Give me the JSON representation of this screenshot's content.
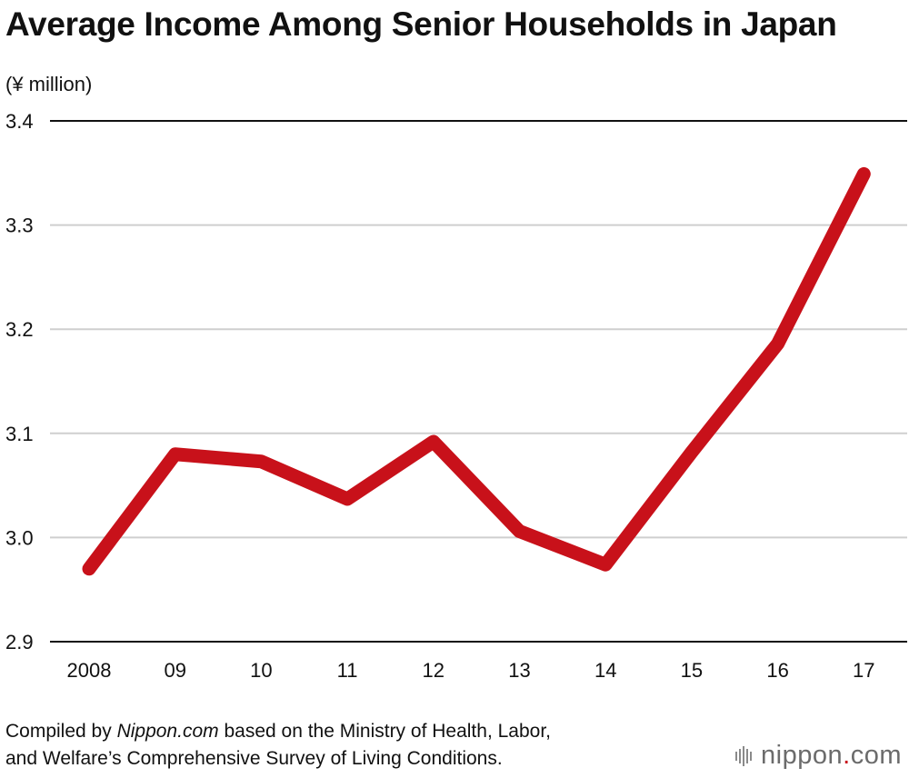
{
  "chart_data": {
    "type": "line",
    "title": "Average Income Among Senior Households in Japan",
    "ylabel": "(¥ million)",
    "xlabel": "",
    "categories": [
      "2008",
      "09",
      "10",
      "11",
      "12",
      "13",
      "14",
      "15",
      "16",
      "17"
    ],
    "series": [
      {
        "values": [
          2.97,
          3.08,
          3.073,
          3.037,
          3.092,
          3.006,
          2.974,
          3.082,
          3.186,
          3.349
        ]
      }
    ],
    "ylim": [
      2.9,
      3.4
    ],
    "yticks": [
      "2.9",
      "3.0",
      "3.1",
      "3.2",
      "3.3",
      "3.4"
    ],
    "grid": true,
    "line_color": "#c8111a"
  },
  "source": {
    "prefix": "Compiled by ",
    "site": "Nippon.com",
    "line1_rest": " based on the Ministry of Health, Labor,",
    "line2": "and Welfare’s Comprehensive Survey of Living Conditions."
  },
  "logo": {
    "name": "nippon",
    "dot": ".",
    "tld": "com"
  }
}
